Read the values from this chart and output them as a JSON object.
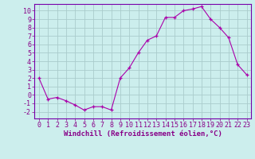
{
  "x": [
    0,
    1,
    2,
    3,
    4,
    5,
    6,
    7,
    8,
    9,
    10,
    11,
    12,
    13,
    14,
    15,
    16,
    17,
    18,
    19,
    20,
    21,
    22,
    23
  ],
  "y": [
    2,
    -0.5,
    -0.3,
    -0.7,
    -1.2,
    -1.8,
    -1.4,
    -1.4,
    -1.8,
    2.0,
    3.2,
    5.0,
    6.5,
    7.0,
    9.2,
    9.2,
    10.0,
    10.2,
    10.5,
    9.0,
    8.0,
    6.8,
    3.6,
    2.4
  ],
  "line_color": "#aa00aa",
  "marker": "+",
  "background_color": "#cceeed",
  "grid_color": "#aacccc",
  "xlabel": "Windchill (Refroidissement éolien,°C)",
  "xlabel_fontsize": 6.5,
  "tick_fontsize": 6.0,
  "ylim": [
    -2.8,
    10.8
  ],
  "xlim": [
    -0.5,
    23.5
  ],
  "yticks": [
    -2,
    -1,
    0,
    1,
    2,
    3,
    4,
    5,
    6,
    7,
    8,
    9,
    10
  ],
  "xticks": [
    0,
    1,
    2,
    3,
    4,
    5,
    6,
    7,
    8,
    9,
    10,
    11,
    12,
    13,
    14,
    15,
    16,
    17,
    18,
    19,
    20,
    21,
    22,
    23
  ],
  "label_color": "#880088",
  "spine_color": "#7700aa"
}
